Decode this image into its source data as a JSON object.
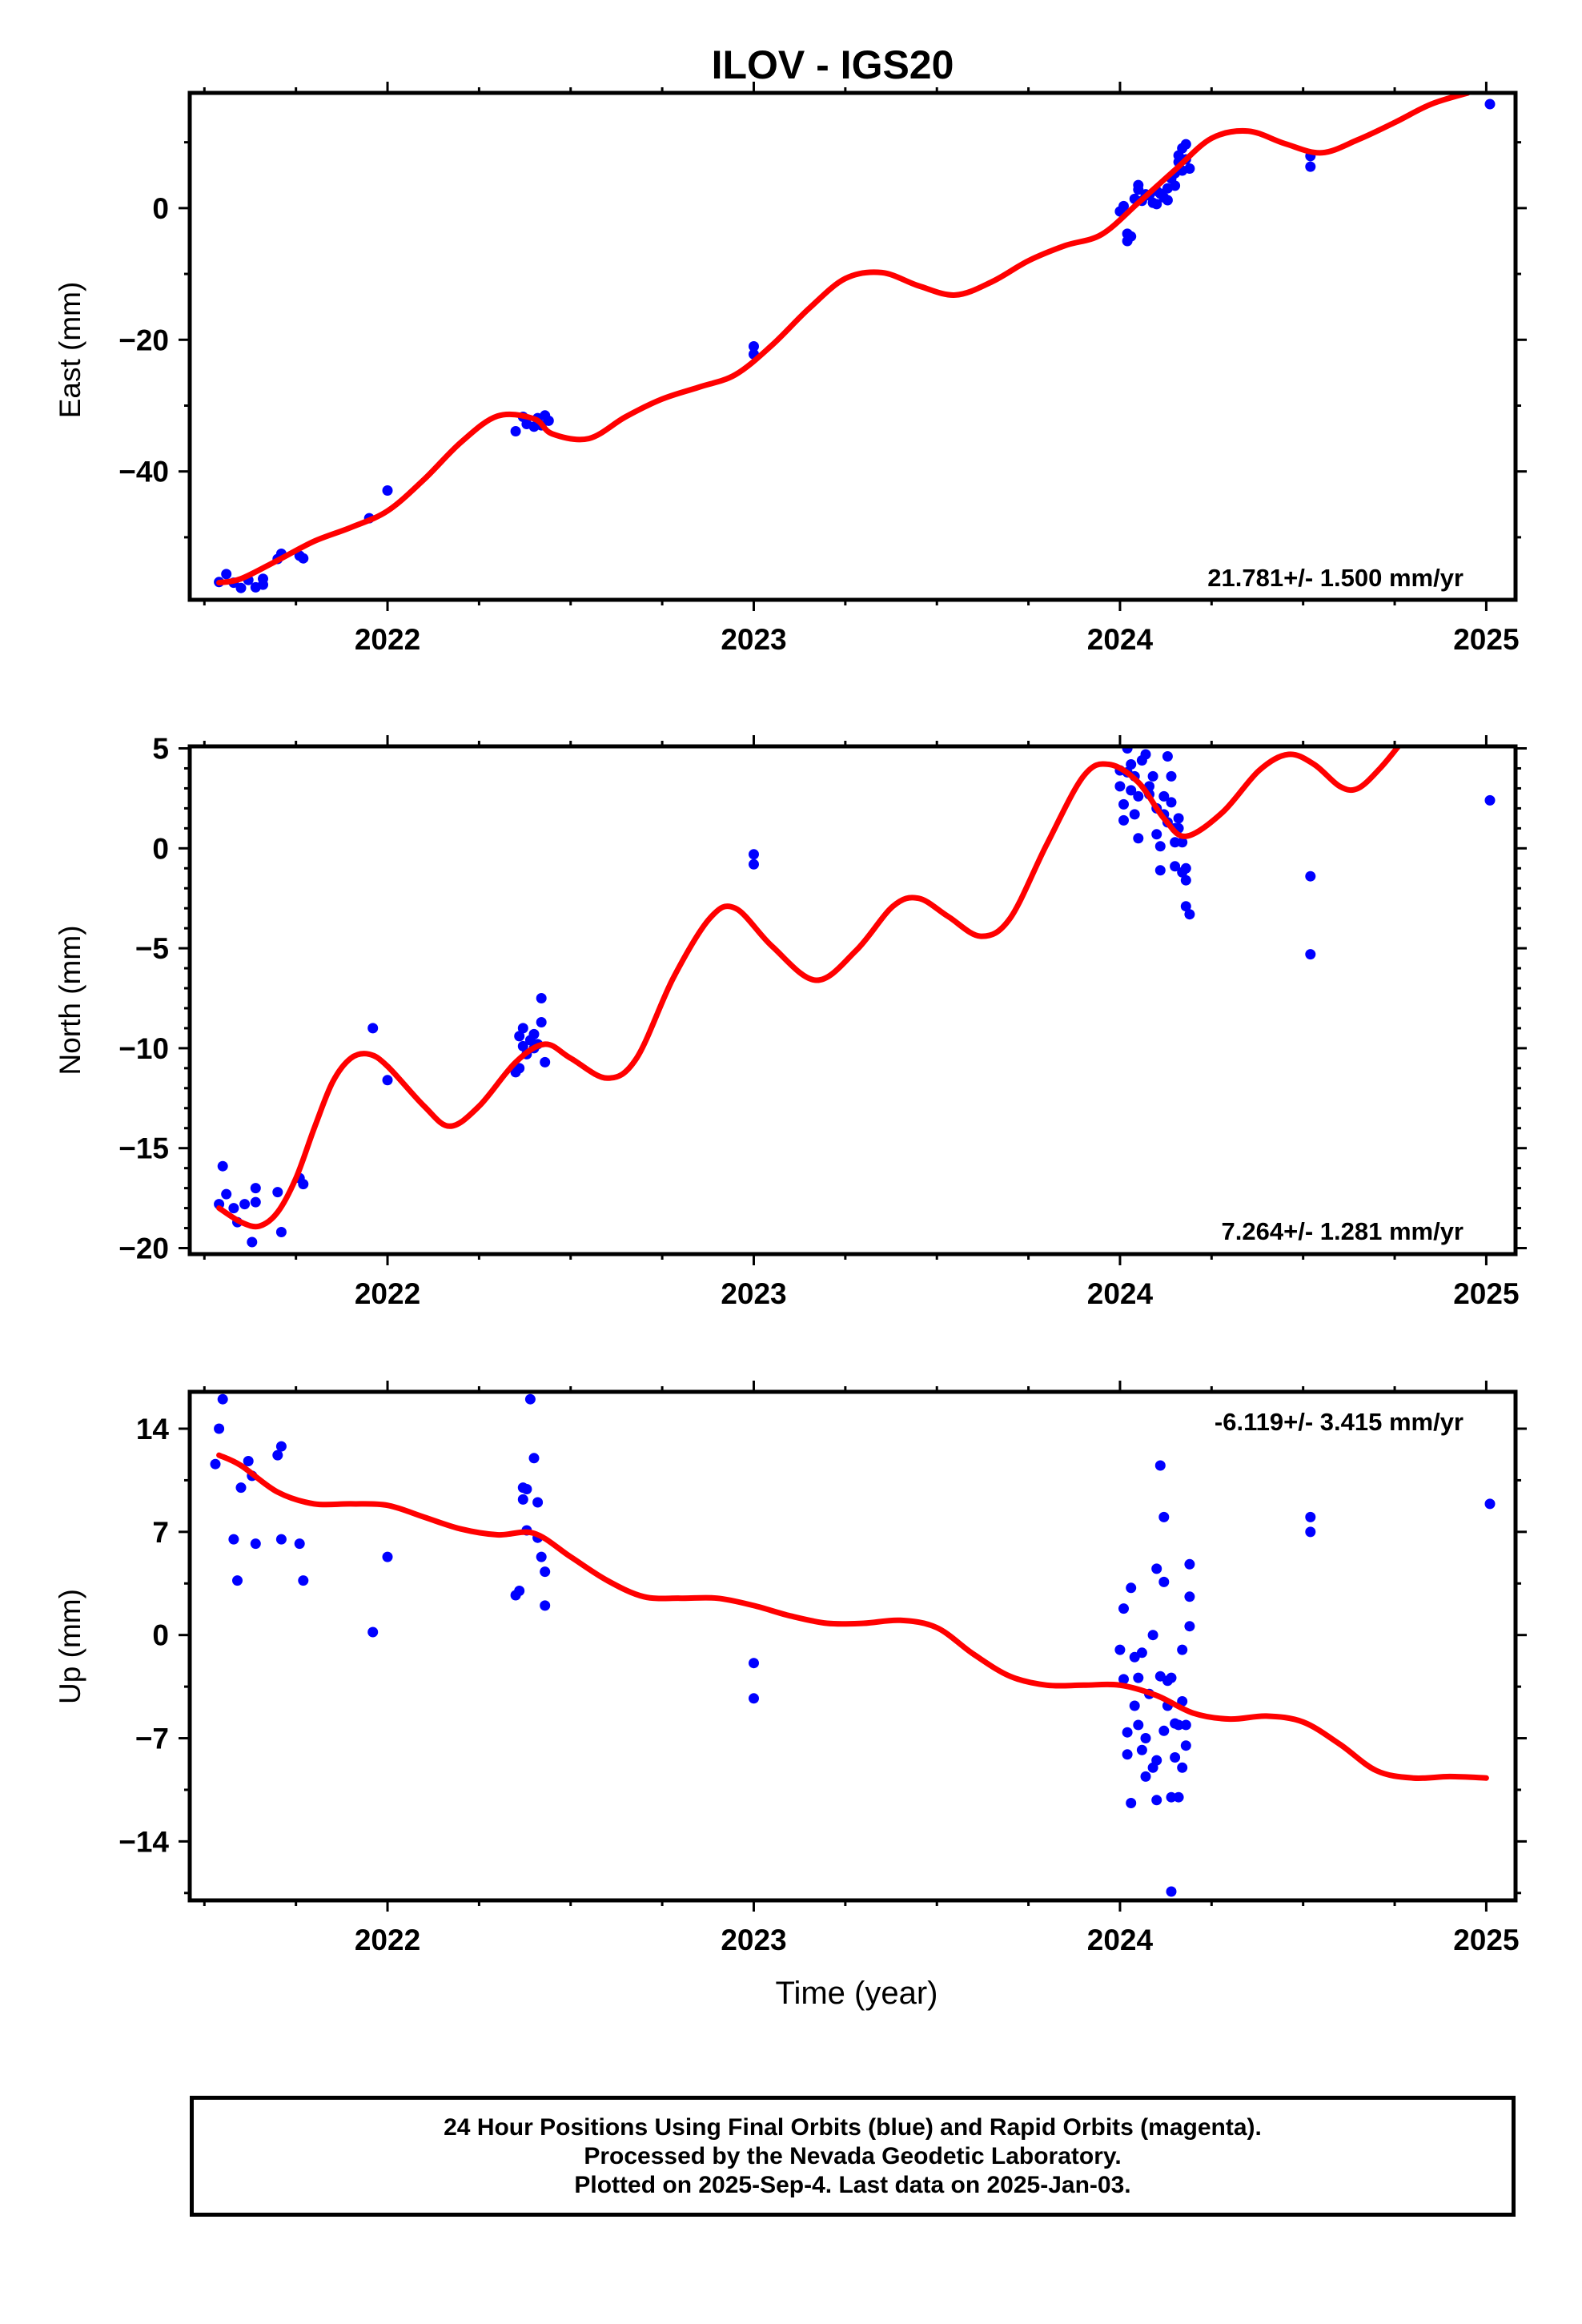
{
  "title": "ILOV - IGS20",
  "colors": {
    "data": "#0000ff",
    "fit": "#ff0000",
    "frame": "#000000"
  },
  "x_axis": {
    "label": "Time (year)",
    "min": 2021.46,
    "max": 2025.08,
    "labeled_ticks": [
      2022,
      2023,
      2024,
      2025
    ]
  },
  "caption": {
    "line1": "24 Hour Positions Using Final Orbits (blue) and Rapid Orbits (magenta).",
    "line2": "Processed by the Nevada Geodetic Laboratory.",
    "line3": "Plotted on 2025-Sep-4. Last data on 2025-Jan-03."
  },
  "chart_data": [
    {
      "type": "scatter",
      "name": "east",
      "ylabel": "East (mm)",
      "ylim": [
        -59.5,
        17.5
      ],
      "yticks": [
        0,
        -20,
        -40
      ],
      "yticklabels": [
        "0",
        "−20",
        "−40"
      ],
      "ymajor": 20,
      "yminor": 10,
      "rate_label": "21.781+/- 1.500 mm/yr",
      "rate_position": "bottom-right",
      "points": [
        [
          2021.54,
          -56.8
        ],
        [
          2021.56,
          -55.6
        ],
        [
          2021.58,
          -56.9
        ],
        [
          2021.6,
          -57.7
        ],
        [
          2021.62,
          -56.5
        ],
        [
          2021.64,
          -57.6
        ],
        [
          2021.66,
          -56.3
        ],
        [
          2021.66,
          -57.2
        ],
        [
          2021.7,
          -53.3
        ],
        [
          2021.71,
          -52.5
        ],
        [
          2021.76,
          -52.8
        ],
        [
          2021.77,
          -53.2
        ],
        [
          2021.95,
          -47.1
        ],
        [
          2022.0,
          -42.9
        ],
        [
          2022.35,
          -33.9
        ],
        [
          2022.37,
          -31.7
        ],
        [
          2022.38,
          -32.8
        ],
        [
          2022.4,
          -33.2
        ],
        [
          2022.41,
          -31.9
        ],
        [
          2022.42,
          -33.0
        ],
        [
          2022.43,
          -31.5
        ],
        [
          2022.44,
          -32.3
        ],
        [
          2023.0,
          -21.0
        ],
        [
          2023.0,
          -22.2
        ],
        [
          2024.0,
          -0.5
        ],
        [
          2024.01,
          0.3
        ],
        [
          2024.02,
          -3.9
        ],
        [
          2024.02,
          -5.0
        ],
        [
          2024.03,
          -4.3
        ],
        [
          2024.04,
          1.4
        ],
        [
          2024.05,
          2.8
        ],
        [
          2024.05,
          3.5
        ],
        [
          2024.06,
          1.1
        ],
        [
          2024.07,
          2.1
        ],
        [
          2024.08,
          1.9
        ],
        [
          2024.09,
          0.8
        ],
        [
          2024.1,
          0.6
        ],
        [
          2024.1,
          2.6
        ],
        [
          2024.11,
          2.2
        ],
        [
          2024.12,
          1.6
        ],
        [
          2024.13,
          1.2
        ],
        [
          2024.13,
          3.0
        ],
        [
          2024.14,
          4.5
        ],
        [
          2024.15,
          5.3
        ],
        [
          2024.15,
          3.4
        ],
        [
          2024.16,
          7.0
        ],
        [
          2024.16,
          8.0
        ],
        [
          2024.17,
          9.1
        ],
        [
          2024.17,
          5.7
        ],
        [
          2024.18,
          9.7
        ],
        [
          2024.18,
          7.4
        ],
        [
          2024.19,
          6.0
        ],
        [
          2024.52,
          7.9
        ],
        [
          2024.52,
          6.3
        ],
        [
          2025.01,
          15.8
        ]
      ],
      "fit": [
        [
          2021.54,
          -56.9
        ],
        [
          2021.6,
          -56.3
        ],
        [
          2021.7,
          -53.5
        ],
        [
          2021.8,
          -50.6
        ],
        [
          2021.9,
          -48.5
        ],
        [
          2022.0,
          -46.0
        ],
        [
          2022.1,
          -41.2
        ],
        [
          2022.2,
          -35.6
        ],
        [
          2022.3,
          -31.6
        ],
        [
          2022.4,
          -32.0
        ],
        [
          2022.45,
          -34.3
        ],
        [
          2022.55,
          -35.0
        ],
        [
          2022.65,
          -31.7
        ],
        [
          2022.75,
          -29.0
        ],
        [
          2022.85,
          -27.2
        ],
        [
          2022.95,
          -25.3
        ],
        [
          2023.05,
          -20.8
        ],
        [
          2023.15,
          -15.3
        ],
        [
          2023.25,
          -10.7
        ],
        [
          2023.35,
          -9.8
        ],
        [
          2023.45,
          -11.8
        ],
        [
          2023.55,
          -13.2
        ],
        [
          2023.65,
          -11.2
        ],
        [
          2023.75,
          -8.0
        ],
        [
          2023.85,
          -5.7
        ],
        [
          2023.95,
          -4.0
        ],
        [
          2024.05,
          0.8
        ],
        [
          2024.15,
          5.8
        ],
        [
          2024.25,
          10.6
        ],
        [
          2024.35,
          11.7
        ],
        [
          2024.45,
          9.8
        ],
        [
          2024.55,
          8.4
        ],
        [
          2024.65,
          10.4
        ],
        [
          2024.75,
          13.0
        ],
        [
          2024.85,
          15.8
        ],
        [
          2024.95,
          17.5
        ]
      ]
    },
    {
      "type": "scatter",
      "name": "north",
      "ylabel": "North (mm)",
      "ylim": [
        -20.3,
        5.1
      ],
      "yticks": [
        5,
        0,
        -5,
        -10,
        -15,
        -20
      ],
      "yticklabels": [
        "5",
        "0",
        "−5",
        "−10",
        "−15",
        "−20"
      ],
      "ymajor": 5,
      "yminor": 1,
      "rate_label": "7.264+/- 1.281 mm/yr",
      "rate_position": "bottom-right",
      "points": [
        [
          2021.54,
          -17.8
        ],
        [
          2021.55,
          -15.9
        ],
        [
          2021.56,
          -17.3
        ],
        [
          2021.58,
          -18.0
        ],
        [
          2021.59,
          -18.7
        ],
        [
          2021.61,
          -17.8
        ],
        [
          2021.63,
          -19.7
        ],
        [
          2021.64,
          -17.7
        ],
        [
          2021.64,
          -17.0
        ],
        [
          2021.7,
          -17.2
        ],
        [
          2021.71,
          -19.2
        ],
        [
          2021.76,
          -16.5
        ],
        [
          2021.77,
          -16.8
        ],
        [
          2021.96,
          -9.0
        ],
        [
          2022.0,
          -11.6
        ],
        [
          2022.35,
          -11.2
        ],
        [
          2022.36,
          -9.4
        ],
        [
          2022.36,
          -11.0
        ],
        [
          2022.37,
          -9.9
        ],
        [
          2022.37,
          -9.0
        ],
        [
          2022.38,
          -10.3
        ],
        [
          2022.39,
          -9.6
        ],
        [
          2022.4,
          -10.0
        ],
        [
          2022.4,
          -9.3
        ],
        [
          2022.41,
          -9.8
        ],
        [
          2022.42,
          -8.7
        ],
        [
          2022.42,
          -7.5
        ],
        [
          2022.43,
          -10.7
        ],
        [
          2023.0,
          -0.3
        ],
        [
          2023.0,
          -0.8
        ],
        [
          2024.0,
          3.9
        ],
        [
          2024.0,
          3.1
        ],
        [
          2024.01,
          2.2
        ],
        [
          2024.01,
          1.4
        ],
        [
          2024.02,
          3.8
        ],
        [
          2024.02,
          5.0
        ],
        [
          2024.03,
          2.9
        ],
        [
          2024.03,
          4.2
        ],
        [
          2024.04,
          3.6
        ],
        [
          2024.04,
          1.7
        ],
        [
          2024.05,
          0.5
        ],
        [
          2024.05,
          2.6
        ],
        [
          2024.06,
          4.4
        ],
        [
          2024.07,
          4.7
        ],
        [
          2024.08,
          3.1
        ],
        [
          2024.08,
          2.7
        ],
        [
          2024.09,
          3.6
        ],
        [
          2024.1,
          2.0
        ],
        [
          2024.1,
          0.7
        ],
        [
          2024.11,
          0.1
        ],
        [
          2024.11,
          -1.1
        ],
        [
          2024.12,
          1.7
        ],
        [
          2024.12,
          2.6
        ],
        [
          2024.13,
          1.3
        ],
        [
          2024.13,
          4.6
        ],
        [
          2024.14,
          3.6
        ],
        [
          2024.14,
          2.3
        ],
        [
          2024.15,
          1.0
        ],
        [
          2024.15,
          0.3
        ],
        [
          2024.15,
          -0.9
        ],
        [
          2024.16,
          1.5
        ],
        [
          2024.16,
          1.0
        ],
        [
          2024.17,
          0.3
        ],
        [
          2024.17,
          -1.2
        ],
        [
          2024.18,
          -1.0
        ],
        [
          2024.18,
          -1.6
        ],
        [
          2024.18,
          -2.9
        ],
        [
          2024.19,
          -3.3
        ],
        [
          2024.52,
          -1.4
        ],
        [
          2024.52,
          -5.3
        ],
        [
          2025.01,
          2.4
        ]
      ],
      "fit": [
        [
          2021.54,
          -18.0
        ],
        [
          2021.6,
          -18.7
        ],
        [
          2021.65,
          -18.9
        ],
        [
          2021.7,
          -18.2
        ],
        [
          2021.75,
          -16.5
        ],
        [
          2021.8,
          -14.0
        ],
        [
          2021.85,
          -11.7
        ],
        [
          2021.9,
          -10.5
        ],
        [
          2021.95,
          -10.3
        ],
        [
          2022.0,
          -10.9
        ],
        [
          2022.1,
          -12.9
        ],
        [
          2022.17,
          -13.9
        ],
        [
          2022.25,
          -12.9
        ],
        [
          2022.35,
          -10.7
        ],
        [
          2022.43,
          -9.8
        ],
        [
          2022.5,
          -10.5
        ],
        [
          2022.6,
          -11.5
        ],
        [
          2022.68,
          -10.5
        ],
        [
          2022.78,
          -6.5
        ],
        [
          2022.88,
          -3.5
        ],
        [
          2022.95,
          -3.0
        ],
        [
          2023.05,
          -4.9
        ],
        [
          2023.17,
          -6.6
        ],
        [
          2023.28,
          -5.1
        ],
        [
          2023.38,
          -2.9
        ],
        [
          2023.45,
          -2.5
        ],
        [
          2023.53,
          -3.4
        ],
        [
          2023.62,
          -4.4
        ],
        [
          2023.7,
          -3.5
        ],
        [
          2023.8,
          0.2
        ],
        [
          2023.9,
          3.6
        ],
        [
          2023.97,
          4.2
        ],
        [
          2024.05,
          3.3
        ],
        [
          2024.12,
          1.5
        ],
        [
          2024.18,
          0.6
        ],
        [
          2024.28,
          1.8
        ],
        [
          2024.38,
          3.9
        ],
        [
          2024.46,
          4.7
        ],
        [
          2024.53,
          4.2
        ],
        [
          2024.6,
          3.1
        ],
        [
          2024.65,
          3.0
        ],
        [
          2024.71,
          4.0
        ],
        [
          2024.76,
          5.1
        ]
      ]
    },
    {
      "type": "scatter",
      "name": "up",
      "ylabel": "Up (mm)",
      "ylim": [
        -18.0,
        16.5
      ],
      "yticks": [
        14,
        7,
        0,
        -7,
        -14
      ],
      "yticklabels": [
        "14",
        "7",
        "0",
        "−7",
        "−14"
      ],
      "ymajor": 7,
      "yminor": 3.5,
      "rate_label": "-6.119+/- 3.415 mm/yr",
      "rate_position": "top-right",
      "points": [
        [
          2021.53,
          11.6
        ],
        [
          2021.54,
          14.0
        ],
        [
          2021.55,
          16.0
        ],
        [
          2021.58,
          6.5
        ],
        [
          2021.59,
          3.7
        ],
        [
          2021.6,
          10.0
        ],
        [
          2021.62,
          11.8
        ],
        [
          2021.63,
          10.8
        ],
        [
          2021.64,
          6.2
        ],
        [
          2021.7,
          12.2
        ],
        [
          2021.71,
          12.8
        ],
        [
          2021.71,
          6.5
        ],
        [
          2021.76,
          6.2
        ],
        [
          2021.77,
          3.7
        ],
        [
          2021.96,
          0.2
        ],
        [
          2022.0,
          5.3
        ],
        [
          2022.35,
          2.7
        ],
        [
          2022.36,
          3.0
        ],
        [
          2022.37,
          9.2
        ],
        [
          2022.37,
          10.0
        ],
        [
          2022.38,
          7.1
        ],
        [
          2022.38,
          9.9
        ],
        [
          2022.39,
          16.0
        ],
        [
          2022.4,
          12.0
        ],
        [
          2022.41,
          6.6
        ],
        [
          2022.41,
          9.0
        ],
        [
          2022.42,
          5.3
        ],
        [
          2022.43,
          4.3
        ],
        [
          2022.43,
          2.0
        ],
        [
          2023.0,
          -1.9
        ],
        [
          2023.0,
          -4.3
        ],
        [
          2024.0,
          -1.0
        ],
        [
          2024.01,
          1.8
        ],
        [
          2024.01,
          -3.0
        ],
        [
          2024.02,
          -6.6
        ],
        [
          2024.02,
          -8.1
        ],
        [
          2024.03,
          3.2
        ],
        [
          2024.03,
          -11.4
        ],
        [
          2024.04,
          -4.8
        ],
        [
          2024.04,
          -1.5
        ],
        [
          2024.05,
          -2.9
        ],
        [
          2024.05,
          -6.1
        ],
        [
          2024.06,
          -1.2
        ],
        [
          2024.06,
          -7.8
        ],
        [
          2024.07,
          -9.6
        ],
        [
          2024.07,
          -7.0
        ],
        [
          2024.08,
          -4.0
        ],
        [
          2024.09,
          0.0
        ],
        [
          2024.09,
          -9.0
        ],
        [
          2024.1,
          -8.5
        ],
        [
          2024.1,
          4.5
        ],
        [
          2024.1,
          -11.2
        ],
        [
          2024.11,
          -2.8
        ],
        [
          2024.11,
          11.5
        ],
        [
          2024.12,
          8.0
        ],
        [
          2024.12,
          3.6
        ],
        [
          2024.12,
          -6.5
        ],
        [
          2024.13,
          -3.1
        ],
        [
          2024.13,
          -4.8
        ],
        [
          2024.14,
          -2.9
        ],
        [
          2024.14,
          -11.0
        ],
        [
          2024.14,
          -17.4
        ],
        [
          2024.15,
          -6.0
        ],
        [
          2024.15,
          -8.3
        ],
        [
          2024.16,
          -11.0
        ],
        [
          2024.16,
          -6.1
        ],
        [
          2024.17,
          -4.5
        ],
        [
          2024.17,
          -1.0
        ],
        [
          2024.17,
          -9.0
        ],
        [
          2024.18,
          -7.5
        ],
        [
          2024.18,
          -6.1
        ],
        [
          2024.19,
          0.6
        ],
        [
          2024.19,
          2.6
        ],
        [
          2024.19,
          4.8
        ],
        [
          2024.52,
          8.0
        ],
        [
          2024.52,
          7.0
        ],
        [
          2025.01,
          8.9
        ]
      ],
      "fit": [
        [
          2021.54,
          12.2
        ],
        [
          2021.6,
          11.5
        ],
        [
          2021.7,
          9.7
        ],
        [
          2021.8,
          8.9
        ],
        [
          2021.9,
          8.9
        ],
        [
          2022.0,
          8.8
        ],
        [
          2022.1,
          8.0
        ],
        [
          2022.2,
          7.2
        ],
        [
          2022.3,
          6.8
        ],
        [
          2022.4,
          6.9
        ],
        [
          2022.5,
          5.3
        ],
        [
          2022.6,
          3.7
        ],
        [
          2022.7,
          2.6
        ],
        [
          2022.8,
          2.5
        ],
        [
          2022.9,
          2.5
        ],
        [
          2023.0,
          2.0
        ],
        [
          2023.1,
          1.3
        ],
        [
          2023.2,
          0.8
        ],
        [
          2023.3,
          0.8
        ],
        [
          2023.4,
          1.0
        ],
        [
          2023.5,
          0.5
        ],
        [
          2023.6,
          -1.3
        ],
        [
          2023.7,
          -2.8
        ],
        [
          2023.8,
          -3.4
        ],
        [
          2023.9,
          -3.4
        ],
        [
          2024.0,
          -3.4
        ],
        [
          2024.1,
          -4.1
        ],
        [
          2024.2,
          -5.3
        ],
        [
          2024.3,
          -5.7
        ],
        [
          2024.4,
          -5.5
        ],
        [
          2024.5,
          -5.9
        ],
        [
          2024.6,
          -7.4
        ],
        [
          2024.7,
          -9.2
        ],
        [
          2024.8,
          -9.7
        ],
        [
          2024.9,
          -9.6
        ],
        [
          2025.0,
          -9.7
        ]
      ]
    }
  ]
}
